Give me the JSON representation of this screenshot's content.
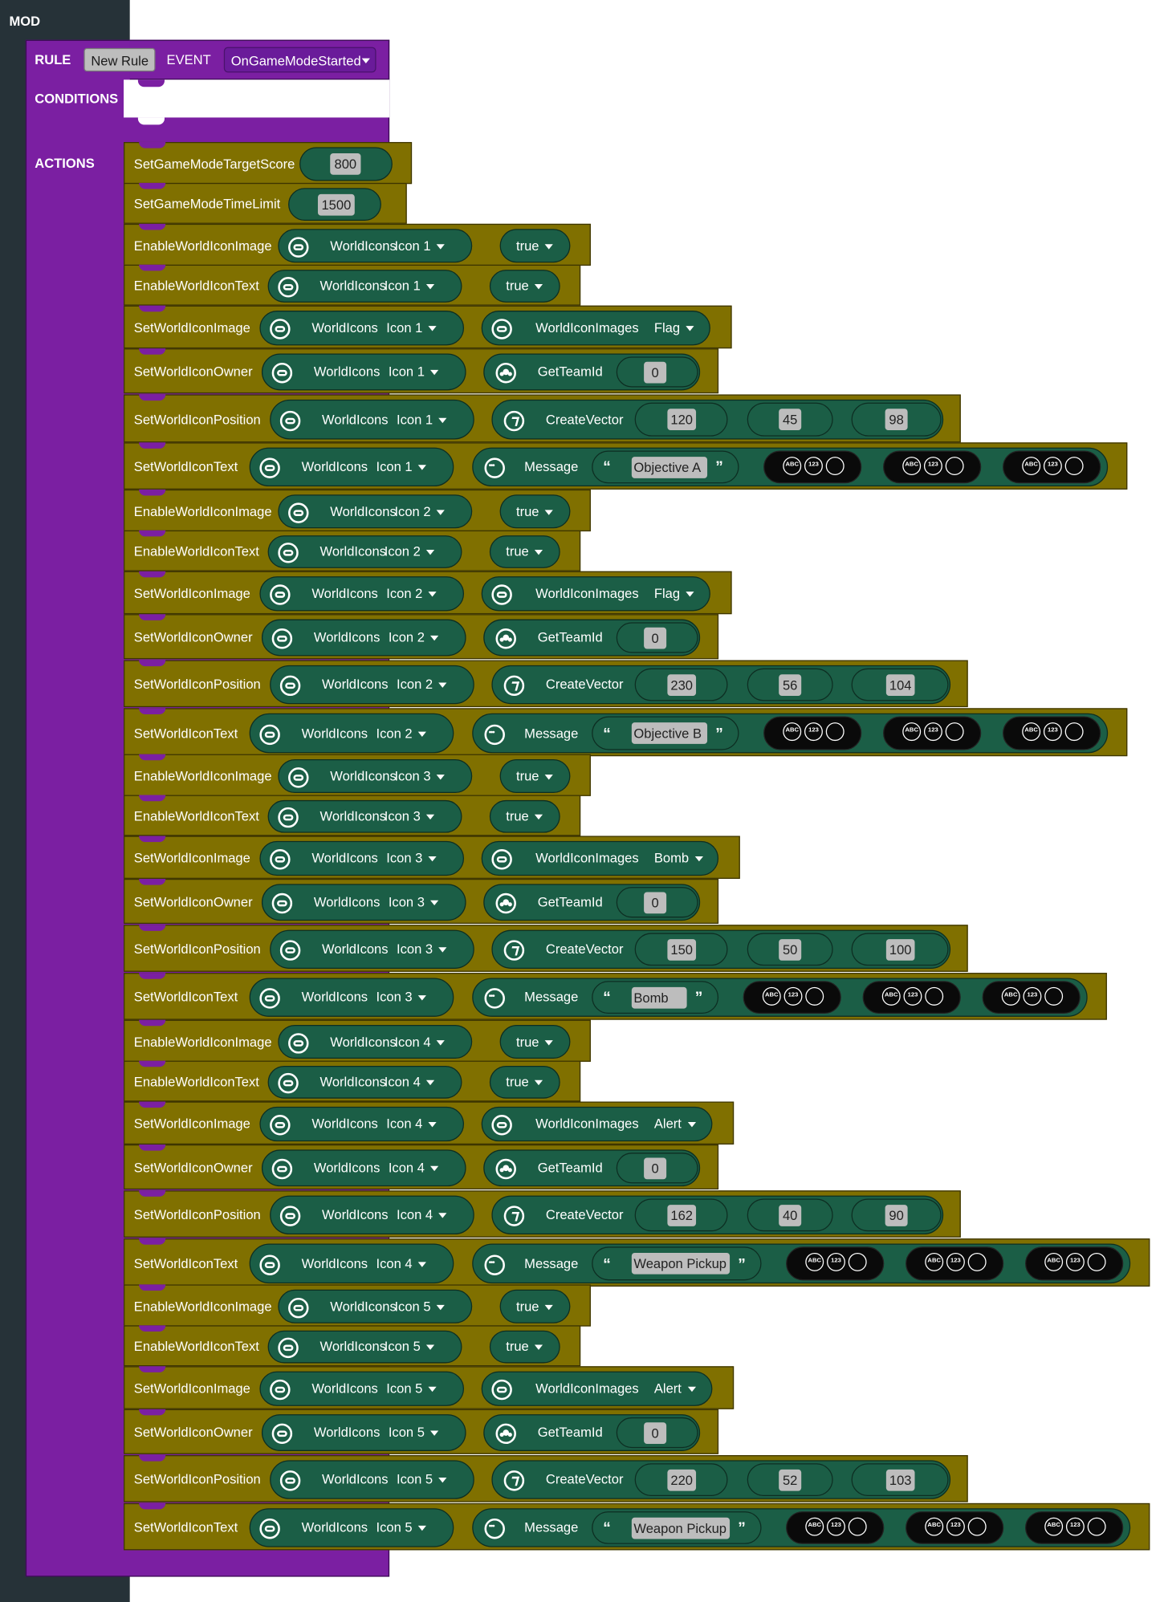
{
  "mod": {
    "label": "MOD"
  },
  "rule": {
    "label": "RULE",
    "name": "New Rule",
    "event_label": "EVENT",
    "event": "OnGameModeStarted",
    "conditions_label": "CONDITIONS",
    "actions_label": "ACTIONS"
  },
  "labels": {
    "world_icons": "WorldIcons",
    "world_icon_images": "WorldIconImages",
    "get_team_id": "GetTeamId",
    "create_vector": "CreateVector",
    "message": "Message",
    "open_quote": "“",
    "close_quote": "”",
    "abc": "ABC",
    "n123": "123"
  },
  "icon_names": {
    "world_icons": "world-icons-icon",
    "team": "team-icon",
    "vector": "vector-icon",
    "message": "message-icon",
    "format": "format-icon"
  },
  "colors": {
    "mod_bg": "#263238",
    "rule": "#7b1fa2",
    "action": "#807000",
    "value_pill": "#1b5e46",
    "format_pill": "#0a0a0a"
  },
  "actions": [
    {
      "type": "SetGameModeTargetScore",
      "label": "SetGameModeTargetScore",
      "value": "800"
    },
    {
      "type": "SetGameModeTimeLimit",
      "label": "SetGameModeTimeLimit",
      "value": "1500"
    },
    {
      "type": "EnableWorldIconImage",
      "label": "EnableWorldIconImage",
      "icon": "Icon 1",
      "bool": "true"
    },
    {
      "type": "EnableWorldIconText",
      "label": "EnableWorldIconText",
      "icon": "Icon 1",
      "bool": "true"
    },
    {
      "type": "SetWorldIconImage",
      "label": "SetWorldIconImage",
      "icon": "Icon 1",
      "image": "Flag"
    },
    {
      "type": "SetWorldIconOwner",
      "label": "SetWorldIconOwner",
      "icon": "Icon 1",
      "team": "0"
    },
    {
      "type": "SetWorldIconPosition",
      "label": "SetWorldIconPosition",
      "icon": "Icon 1",
      "vector": [
        "120",
        "45",
        "98"
      ]
    },
    {
      "type": "SetWorldIconText",
      "label": "SetWorldIconText",
      "icon": "Icon 1",
      "message": "Objective A"
    },
    {
      "type": "EnableWorldIconImage",
      "label": "EnableWorldIconImage",
      "icon": "Icon 2",
      "bool": "true"
    },
    {
      "type": "EnableWorldIconText",
      "label": "EnableWorldIconText",
      "icon": "Icon 2",
      "bool": "true"
    },
    {
      "type": "SetWorldIconImage",
      "label": "SetWorldIconImage",
      "icon": "Icon 2",
      "image": "Flag"
    },
    {
      "type": "SetWorldIconOwner",
      "label": "SetWorldIconOwner",
      "icon": "Icon 2",
      "team": "0"
    },
    {
      "type": "SetWorldIconPosition",
      "label": "SetWorldIconPosition",
      "icon": "Icon 2",
      "vector": [
        "230",
        "56",
        "104"
      ]
    },
    {
      "type": "SetWorldIconText",
      "label": "SetWorldIconText",
      "icon": "Icon 2",
      "message": "Objective B"
    },
    {
      "type": "EnableWorldIconImage",
      "label": "EnableWorldIconImage",
      "icon": "Icon 3",
      "bool": "true"
    },
    {
      "type": "EnableWorldIconText",
      "label": "EnableWorldIconText",
      "icon": "Icon 3",
      "bool": "true"
    },
    {
      "type": "SetWorldIconImage",
      "label": "SetWorldIconImage",
      "icon": "Icon 3",
      "image": "Bomb"
    },
    {
      "type": "SetWorldIconOwner",
      "label": "SetWorldIconOwner",
      "icon": "Icon 3",
      "team": "0"
    },
    {
      "type": "SetWorldIconPosition",
      "label": "SetWorldIconPosition",
      "icon": "Icon 3",
      "vector": [
        "150",
        "50",
        "100"
      ]
    },
    {
      "type": "SetWorldIconText",
      "label": "SetWorldIconText",
      "icon": "Icon 3",
      "message": "Bomb"
    },
    {
      "type": "EnableWorldIconImage",
      "label": "EnableWorldIconImage",
      "icon": "Icon 4",
      "bool": "true"
    },
    {
      "type": "EnableWorldIconText",
      "label": "EnableWorldIconText",
      "icon": "Icon 4",
      "bool": "true"
    },
    {
      "type": "SetWorldIconImage",
      "label": "SetWorldIconImage",
      "icon": "Icon 4",
      "image": "Alert"
    },
    {
      "type": "SetWorldIconOwner",
      "label": "SetWorldIconOwner",
      "icon": "Icon 4",
      "team": "0"
    },
    {
      "type": "SetWorldIconPosition",
      "label": "SetWorldIconPosition",
      "icon": "Icon 4",
      "vector": [
        "162",
        "40",
        "90"
      ]
    },
    {
      "type": "SetWorldIconText",
      "label": "SetWorldIconText",
      "icon": "Icon 4",
      "message": "Weapon Pickup"
    },
    {
      "type": "EnableWorldIconImage",
      "label": "EnableWorldIconImage",
      "icon": "Icon 5",
      "bool": "true"
    },
    {
      "type": "EnableWorldIconText",
      "label": "EnableWorldIconText",
      "icon": "Icon 5",
      "bool": "true"
    },
    {
      "type": "SetWorldIconImage",
      "label": "SetWorldIconImage",
      "icon": "Icon 5",
      "image": "Alert"
    },
    {
      "type": "SetWorldIconOwner",
      "label": "SetWorldIconOwner",
      "icon": "Icon 5",
      "team": "0"
    },
    {
      "type": "SetWorldIconPosition",
      "label": "SetWorldIconPosition",
      "icon": "Icon 5",
      "vector": [
        "220",
        "52",
        "103"
      ]
    },
    {
      "type": "SetWorldIconText",
      "label": "SetWorldIconText",
      "icon": "Icon 5",
      "message": "Weapon Pickup"
    }
  ]
}
